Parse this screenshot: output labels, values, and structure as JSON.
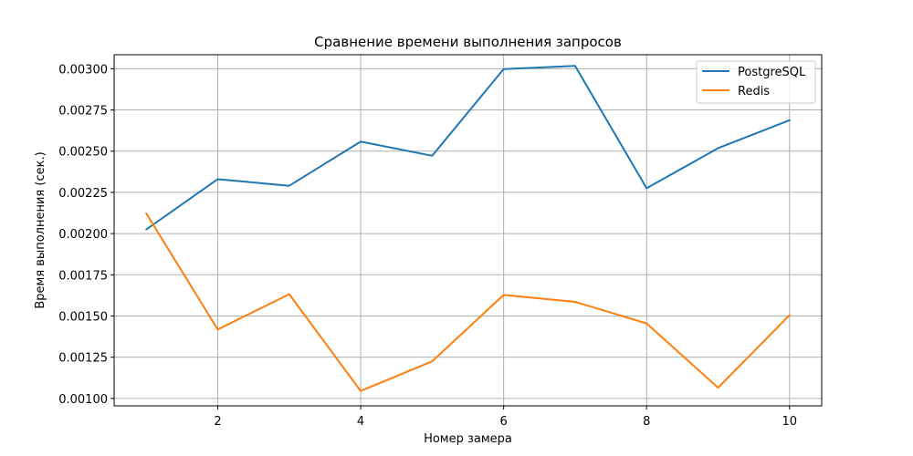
{
  "chart_data": {
    "type": "line",
    "title": "Сравнение времени выполнения запросов",
    "xlabel": "Номер замера",
    "ylabel": "Время выполнения (сек.)",
    "x": [
      1,
      2,
      3,
      4,
      5,
      6,
      7,
      8,
      9,
      10
    ],
    "xlim": [
      0.55,
      10.45
    ],
    "ylim": [
      0.000955,
      0.003085
    ],
    "xticks": [
      2,
      4,
      6,
      8,
      10
    ],
    "xtick_labels": [
      "2",
      "4",
      "6",
      "8",
      "10"
    ],
    "yticks": [
      0.001,
      0.00125,
      0.0015,
      0.00175,
      0.002,
      0.00225,
      0.0025,
      0.00275,
      0.003
    ],
    "ytick_labels": [
      "0.00100",
      "0.00125",
      "0.00150",
      "0.00175",
      "0.00200",
      "0.00225",
      "0.00250",
      "0.00275",
      "0.00300"
    ],
    "grid": true,
    "legend_position": "top-right",
    "series": [
      {
        "name": "PostgreSQL",
        "color": "#1f77b4",
        "values": [
          0.002025,
          0.00233,
          0.00229,
          0.002558,
          0.002472,
          0.002998,
          0.003017,
          0.002275,
          0.002518,
          0.002688
        ]
      },
      {
        "name": "Redis",
        "color": "#ff7f0e",
        "values": [
          0.002122,
          0.001418,
          0.001632,
          0.001045,
          0.001225,
          0.001628,
          0.001586,
          0.001455,
          0.001065,
          0.001505
        ]
      }
    ]
  }
}
